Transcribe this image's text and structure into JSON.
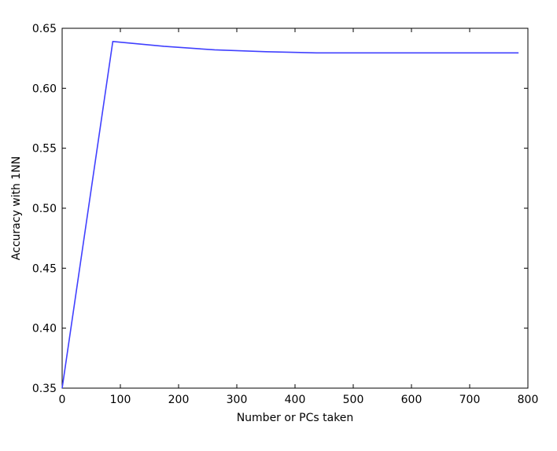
{
  "chart_data": {
    "type": "line",
    "title": "",
    "xlabel": "Number or PCs taken",
    "ylabel": "Accuracy with 1NN",
    "xlim": [
      0,
      800
    ],
    "ylim": [
      0.35,
      0.65
    ],
    "x_ticks": [
      "0",
      "100",
      "200",
      "300",
      "400",
      "500",
      "600",
      "700",
      "800"
    ],
    "y_ticks": [
      "0.35",
      "0.40",
      "0.45",
      "0.50",
      "0.55",
      "0.60",
      "0.65"
    ],
    "grid": false,
    "legend": "none",
    "series": [
      {
        "color": "#4040ff",
        "x": [
          0,
          87,
          175,
          262,
          350,
          437,
          524,
          612,
          699,
          784
        ],
        "y": [
          0.35,
          0.639,
          0.635,
          0.632,
          0.6305,
          0.6295,
          0.6295,
          0.6295,
          0.6295,
          0.6295
        ]
      }
    ]
  }
}
